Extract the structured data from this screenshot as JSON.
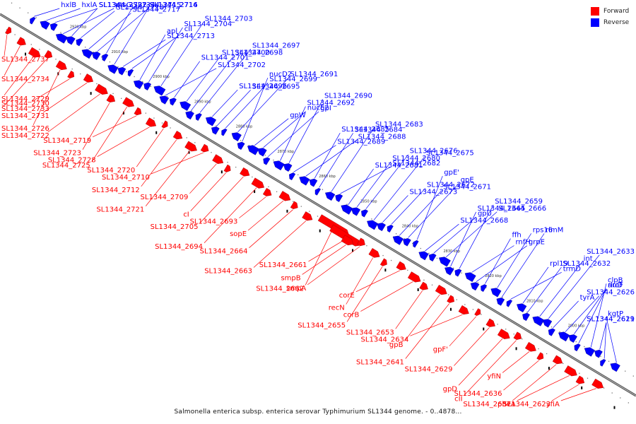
{
  "legend": {
    "forward_label": "Forward",
    "reverse_label": "Reverse",
    "forward_color": "#ff0000",
    "reverse_color": "#0000ff"
  },
  "caption": "Salmonella enterica subsp. enterica serovar Typhimurium SL1344 genome. - 0..4878...",
  "kbp_ticks": [
    "2920 kbp",
    "2910 kbp",
    "2900 kbp",
    "2890 kbp",
    "2880 kbp",
    "2870 kbp",
    "2860 kbp",
    "2850 kbp",
    "2840 kbp",
    "2830 kbp",
    "2820 kbp",
    "2810 kbp",
    "2800 kbp"
  ],
  "reverse_genes": [
    "hxlB",
    "hxlA",
    "SL1344_2732",
    "ptsG",
    "SL1344_2727",
    "SL1344_2718",
    "SL1344_2717",
    "SL1344_2716",
    "SL1344_2715",
    "SL1344_2714",
    "SL1344_2713",
    "cII",
    "apl",
    "SL1344_2704",
    "SL1344_2703",
    "SL1344_2702",
    "SL1344_2701",
    "SL1344_2700",
    "SL1344_2698",
    "SL1344_2697",
    "SL1344_2696",
    "SL1344_2695",
    "SL1344_2699",
    "SL1344_2691",
    "nucD2",
    "gpW",
    "nucE2",
    "gpI",
    "SL1344_2692",
    "SL1344_2690",
    "SL1344_2689",
    "SL1344_2688",
    "SL1344_2685",
    "SL1344_2684",
    "SL1344_2683",
    "SL1344_2682",
    "SL1344_2681",
    "SL1344_2680",
    "SL1344_2676",
    "SL1344_2675",
    "SL1344_2673",
    "SL1344_2672",
    "SL1344_2671",
    "gpE",
    "gpE'",
    "SL1344_2668",
    "gpU",
    "SL1344_2666",
    "SL1344_2665",
    "SL1344_2659",
    "rnfH",
    "grpE",
    "ffh",
    "rps16",
    "rimM",
    "trmD",
    "rpl19",
    "SL1344_2632",
    "int",
    "SL1344_2633",
    "tyrA",
    "SL1344_2626",
    "aroF",
    "rluD",
    "clpB",
    "SL1344_2621",
    "SL1344_2619",
    "kgtP"
  ],
  "forward_genes": [
    "SL1344_2737",
    "SL1344_2734",
    "SL1344_2729",
    "SL1344_2733",
    "SL1344_2726",
    "SL1344_2730",
    "SL1344_2731",
    "SL1344_2722",
    "SL1344_2723",
    "SL1344_2725",
    "SL1344_2719",
    "SL1344_2728",
    "SL1344_2720",
    "SL1344_2712",
    "SL1344_2721",
    "SL1344_2710",
    "SL1344_2709",
    "cI",
    "SL1344_2705",
    "SL1344_2694",
    "SL1344_2693",
    "sopE",
    "SL1344_2664",
    "SL1344_2663",
    "SL1344_2662",
    "SL1344_2661",
    "smpB",
    "smpA",
    "recN",
    "SL1344_2655",
    "corE",
    "corB",
    "SL1344_2653",
    "gpB",
    "SL1344_2641",
    "SL1344_2634",
    "gpF'",
    "SL1344_2629",
    "gpD",
    "cII",
    "yfiN",
    "SL1344_2636",
    "SL1344_2637",
    "pheA",
    "SL1344_2623",
    "yfiA"
  ]
}
